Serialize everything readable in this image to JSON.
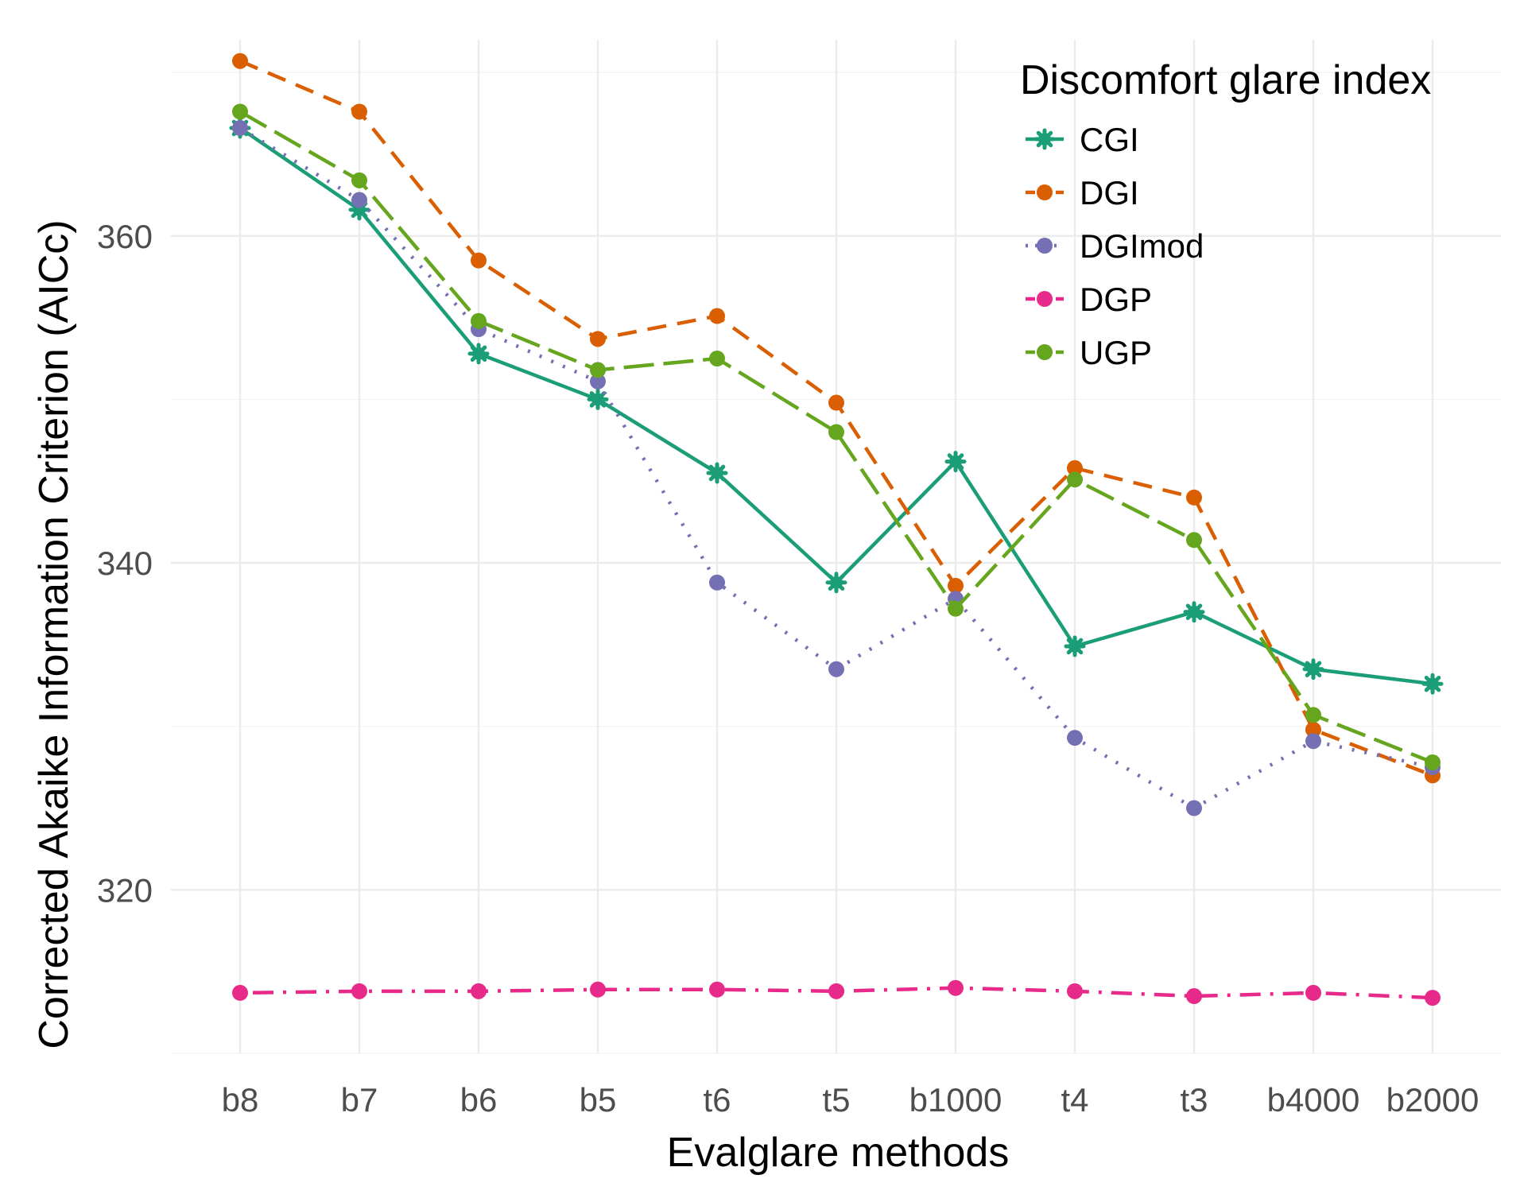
{
  "chart_data": {
    "type": "line",
    "title": "",
    "xlabel": "Evalglare methods",
    "ylabel": "Corrected Akaike Information Criterion (AICc)",
    "categories": [
      "b8",
      "b7",
      "b6",
      "b5",
      "t6",
      "t5",
      "b1000",
      "t4",
      "t3",
      "b4000",
      "b2000"
    ],
    "ylim": [
      310,
      372
    ],
    "yticks": [
      320,
      340,
      360
    ],
    "grid": true,
    "legend": {
      "title": "Discomfort glare index",
      "position": "top-right"
    },
    "series": [
      {
        "name": "CGI",
        "color": "#1b9e77",
        "dash": "solid",
        "marker": "star",
        "values": [
          366.6,
          361.6,
          352.8,
          350.0,
          345.5,
          338.8,
          346.2,
          334.9,
          337.0,
          333.5,
          332.6
        ]
      },
      {
        "name": "DGI",
        "color": "#d95f02",
        "dash": "dashed",
        "marker": "circle",
        "values": [
          370.7,
          367.6,
          358.5,
          353.7,
          355.1,
          349.8,
          338.6,
          345.8,
          344.0,
          329.8,
          327.0
        ]
      },
      {
        "name": "DGImod",
        "color": "#7570b3",
        "dash": "dotted",
        "marker": "circle",
        "values": [
          366.6,
          362.2,
          354.3,
          351.1,
          338.8,
          333.5,
          337.8,
          329.3,
          325.0,
          329.1,
          327.5
        ]
      },
      {
        "name": "DGP",
        "color": "#e7298a",
        "dash": "dotdash",
        "marker": "circle",
        "values": [
          313.7,
          313.8,
          313.8,
          313.9,
          313.9,
          313.8,
          314.0,
          313.8,
          313.5,
          313.7,
          313.4
        ]
      },
      {
        "name": "UGP",
        "color": "#66a61e",
        "dash": "longdash",
        "marker": "circle",
        "values": [
          367.6,
          363.4,
          354.8,
          351.8,
          352.5,
          348.0,
          337.2,
          345.1,
          341.4,
          330.7,
          327.8
        ]
      }
    ]
  }
}
